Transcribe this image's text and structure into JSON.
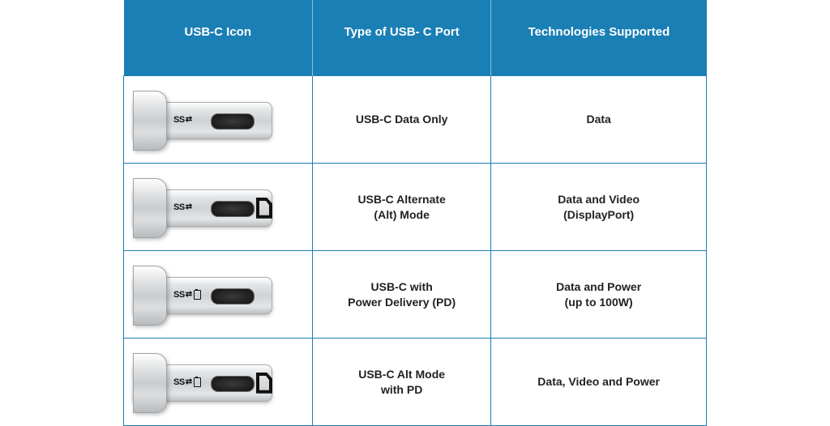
{
  "table": {
    "header_bg": "#1a7fb4",
    "header_fg": "#ffffff",
    "border_color": "#1a7fb4",
    "columns": [
      "USB-C Icon",
      "Type of USB- C Port",
      "Technologies Supported"
    ],
    "col_widths": [
      "220px",
      "250px",
      "250px"
    ],
    "rows": [
      {
        "icon": {
          "ss": true,
          "battery": false,
          "displayport": false
        },
        "type_line1": "USB-C Data Only",
        "type_line2": "",
        "tech_line1": "Data",
        "tech_line2": ""
      },
      {
        "icon": {
          "ss": true,
          "battery": false,
          "displayport": true
        },
        "type_line1": "USB-C Alternate",
        "type_line2": "(Alt) Mode",
        "tech_line1": "Data and Video",
        "tech_line2": "(DisplayPort)"
      },
      {
        "icon": {
          "ss": true,
          "battery": true,
          "displayport": false
        },
        "type_line1": "USB-C with",
        "type_line2": "Power Delivery (PD)",
        "tech_line1": "Data and Power",
        "tech_line2": "(up to 100W)"
      },
      {
        "icon": {
          "ss": true,
          "battery": true,
          "displayport": true
        },
        "type_line1": "USB-C Alt Mode",
        "type_line2": "with PD",
        "tech_line1": "Data, Video and Power",
        "tech_line2": ""
      }
    ]
  }
}
